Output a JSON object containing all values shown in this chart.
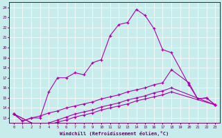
{
  "xlabel": "Windchill (Refroidissement éolien,°C)",
  "bg_color": "#c8ecec",
  "line_color": "#aa00aa",
  "grid_color": "#ffffff",
  "xlim": [
    -0.5,
    23.5
  ],
  "ylim": [
    12.5,
    24.5
  ],
  "yticks": [
    13,
    14,
    15,
    16,
    17,
    18,
    19,
    20,
    21,
    22,
    23,
    24
  ],
  "xticks": [
    0,
    1,
    2,
    3,
    4,
    5,
    6,
    7,
    8,
    9,
    10,
    11,
    12,
    13,
    14,
    15,
    16,
    17,
    18,
    19,
    20,
    21,
    22,
    23
  ],
  "main_x": [
    0,
    1,
    2,
    3,
    4,
    5,
    6,
    7,
    8,
    9,
    10,
    11,
    12,
    13,
    14,
    15,
    16,
    17,
    18,
    20,
    21,
    22,
    23
  ],
  "main_y": [
    13.4,
    12.7,
    13.0,
    13.0,
    15.6,
    17.0,
    17.0,
    17.5,
    17.3,
    18.5,
    18.8,
    21.2,
    22.3,
    22.5,
    23.8,
    23.2,
    21.9,
    19.8,
    19.5,
    16.3,
    14.9,
    15.0,
    14.3
  ],
  "line2_x": [
    0,
    1,
    2,
    3,
    4,
    5,
    6,
    7,
    8,
    9,
    10,
    11,
    12,
    13,
    14,
    15,
    16,
    17,
    18,
    20,
    21,
    22,
    23
  ],
  "line2_y": [
    13.4,
    12.7,
    13.0,
    13.2,
    13.5,
    13.7,
    14.0,
    14.2,
    14.4,
    14.6,
    14.9,
    15.1,
    15.3,
    15.6,
    15.8,
    16.0,
    16.3,
    16.5,
    17.8,
    16.5,
    14.9,
    15.0,
    14.3
  ],
  "line3_x": [
    0,
    3,
    4,
    5,
    6,
    7,
    8,
    9,
    10,
    11,
    12,
    13,
    14,
    15,
    16,
    17,
    18,
    23
  ],
  "line3_y": [
    13.4,
    12.1,
    12.5,
    12.8,
    13.1,
    13.4,
    13.6,
    13.8,
    14.1,
    14.3,
    14.5,
    14.8,
    15.0,
    15.2,
    15.5,
    15.7,
    16.0,
    14.3
  ],
  "line4_x": [
    0,
    3,
    4,
    5,
    6,
    7,
    8,
    9,
    10,
    11,
    12,
    13,
    14,
    15,
    16,
    17,
    18,
    23
  ],
  "line4_y": [
    13.4,
    12.1,
    12.3,
    12.6,
    12.8,
    13.1,
    13.3,
    13.5,
    13.8,
    14.0,
    14.2,
    14.4,
    14.7,
    14.9,
    15.1,
    15.3,
    15.6,
    14.3
  ]
}
